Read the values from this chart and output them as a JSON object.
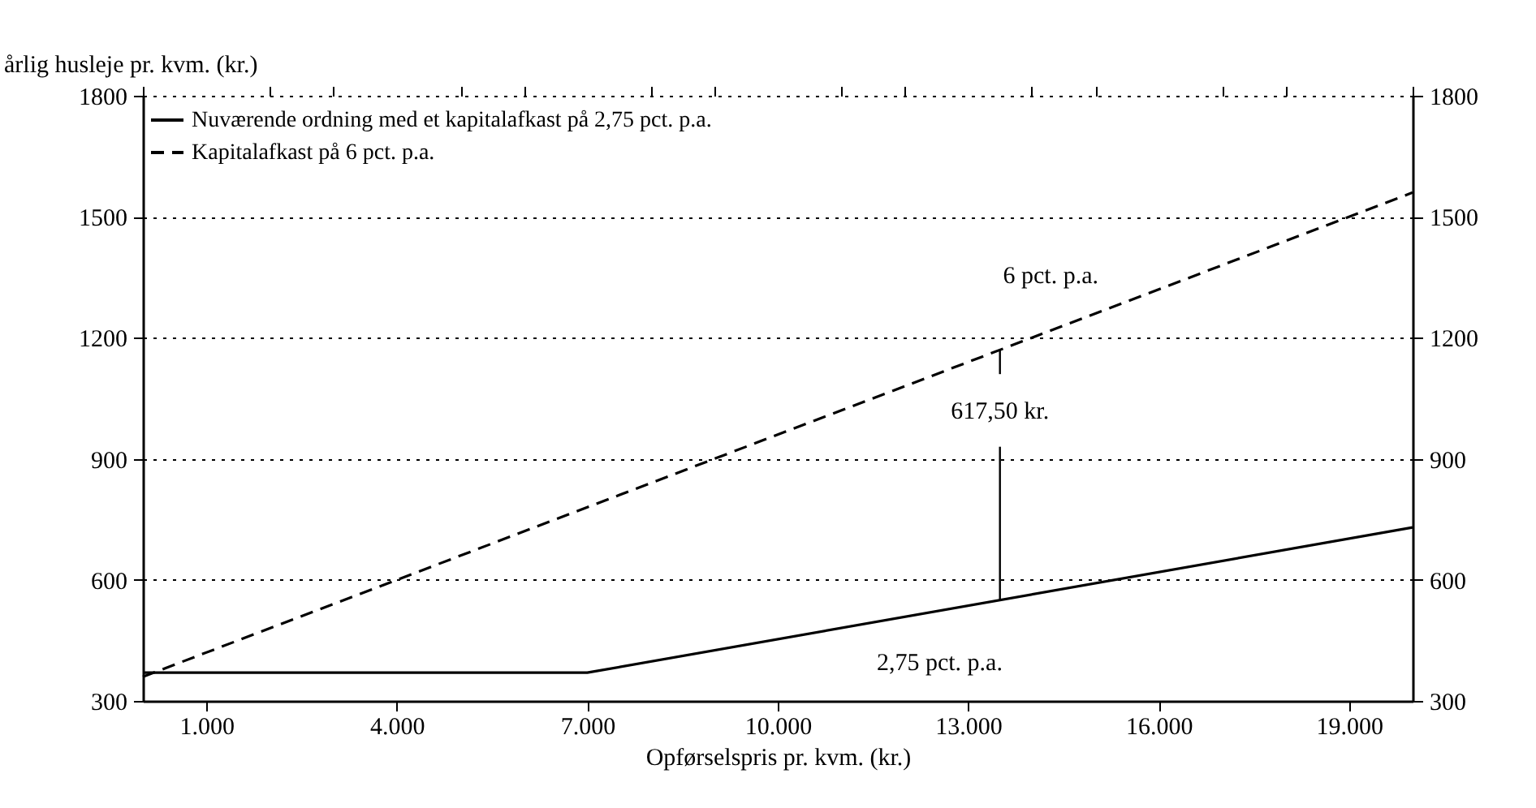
{
  "chart_data": {
    "type": "line",
    "xlabel": "Opførselspris pr. kvm. (kr.)",
    "ylabel": "årlig husleje pr. kvm. (kr.)",
    "xlim": [
      0,
      20000
    ],
    "xticks": [
      {
        "value": 0,
        "label": null
      },
      {
        "value": 1000,
        "label": "1.000"
      },
      {
        "value": 2000,
        "label": null
      },
      {
        "value": 3000,
        "label": null
      },
      {
        "value": 4000,
        "label": "4.000"
      },
      {
        "value": 5000,
        "label": null
      },
      {
        "value": 6000,
        "label": null
      },
      {
        "value": 7000,
        "label": "7.000"
      },
      {
        "value": 8000,
        "label": null
      },
      {
        "value": 9000,
        "label": null
      },
      {
        "value": 10000,
        "label": "10.000"
      },
      {
        "value": 11000,
        "label": null
      },
      {
        "value": 12000,
        "label": null
      },
      {
        "value": 13000,
        "label": "13.000"
      },
      {
        "value": 14000,
        "label": null
      },
      {
        "value": 15000,
        "label": null
      },
      {
        "value": 16000,
        "label": "16.000"
      },
      {
        "value": 17000,
        "label": null
      },
      {
        "value": 18000,
        "label": null
      },
      {
        "value": 19000,
        "label": "19.000"
      },
      {
        "value": 20000,
        "label": null
      }
    ],
    "ylim": [
      300,
      1800
    ],
    "yticks": [
      300,
      600,
      900,
      1200,
      1500,
      1800
    ],
    "y2lim": [
      300,
      1800
    ],
    "y2ticks": [
      300,
      600,
      900,
      1200,
      1500,
      1800
    ],
    "grid": "y",
    "legend": "top left",
    "marker": "none",
    "series": [
      {
        "name": "Nuværende ordning med et kapitalafkast på 2,75 pct. p.a.",
        "color": "#000000",
        "line_style": "solid",
        "x": [
          0,
          7000,
          20000
        ],
        "values": [
          370,
          370,
          730
        ]
      },
      {
        "name": "Kapitalafkast på 6 pct. p.a.",
        "color": "#000000",
        "line_style": "dashed",
        "x": [
          0,
          20000
        ],
        "values": [
          360,
          1560
        ]
      },
      {
        "color": "#000000",
        "line_style": "solid",
        "x": [
          13500,
          13500
        ],
        "values": [
          550,
          930
        ]
      },
      {
        "color": "#000000",
        "line_style": "solid",
        "x": [
          13500,
          13500
        ],
        "values": [
          1110,
          1170
        ]
      }
    ],
    "annotations": [
      {
        "text": "6 pct. p.a.",
        "x": 14300,
        "y": 1218
      },
      "617,50 kr.",
      {
        "text": "2,75 pct. p.a.",
        "x": 12550,
        "y": 525
      }
    ]
  }
}
